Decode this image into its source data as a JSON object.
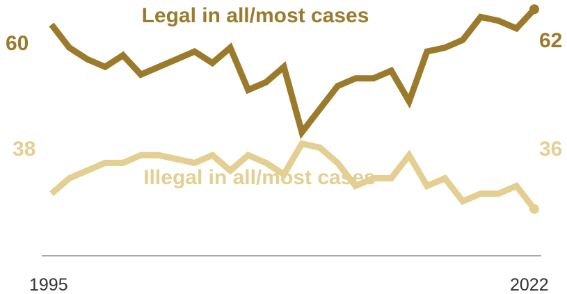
{
  "chart_data": {
    "type": "line",
    "x": [
      1995,
      1996,
      1997,
      1998,
      1999,
      2000,
      2001,
      2002,
      2003,
      2004,
      2005,
      2006,
      2007,
      2008,
      2009,
      2010,
      2011,
      2012,
      2013,
      2014,
      2015,
      2016,
      2017,
      2018,
      2019,
      2020,
      2021,
      2022
    ],
    "series": [
      {
        "name": "Legal in all/most cases",
        "color": "#9b7a2b",
        "values": [
          60,
          57,
          55.5,
          54.5,
          56,
          53.5,
          54.5,
          55.5,
          56.5,
          55,
          57,
          51.5,
          52.5,
          54.5,
          46,
          49,
          52,
          53,
          53,
          54,
          50,
          56.5,
          57,
          58,
          61,
          60.5,
          59.5,
          62
        ],
        "start_label": "60",
        "end_label": "62"
      },
      {
        "name": "Illegal in all/most cases",
        "color": "#e3cf92",
        "values": [
          38,
          40,
          41,
          42,
          42,
          43,
          43,
          42.5,
          42,
          43,
          41,
          43,
          42,
          40.5,
          44.5,
          44,
          42,
          39,
          40,
          40,
          43,
          39,
          40,
          37,
          38,
          38,
          39,
          36
        ],
        "start_label": "38",
        "end_label": "36"
      }
    ],
    "x_tick_labels": [
      "1995",
      "2022"
    ],
    "ylim": [
      30,
      68
    ]
  }
}
